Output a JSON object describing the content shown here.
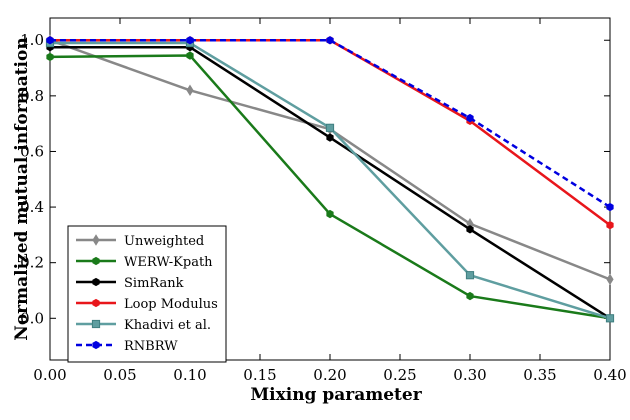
{
  "chart_data": {
    "type": "line",
    "title": "",
    "xlabel": "Mixing parameter",
    "ylabel": "Normalized mutual information",
    "xlim": [
      0.0,
      0.4
    ],
    "ylim": [
      -0.15,
      1.08
    ],
    "x": [
      0.0,
      0.1,
      0.2,
      0.3,
      0.4
    ],
    "xticks": [
      "0.00",
      "0.05",
      "0.10",
      "0.15",
      "0.20",
      "0.25",
      "0.30",
      "0.35",
      "0.40"
    ],
    "yticks": [
      "0.0",
      "0.2",
      "0.4",
      "0.6",
      "0.8",
      "1.0"
    ],
    "grid": false,
    "legend_position": "bottom-left",
    "series": [
      {
        "name": "Unweighted",
        "values": [
          1.0,
          0.82,
          0.68,
          0.34,
          0.14
        ],
        "color": "#888888",
        "marker": "diamond",
        "dash": "solid"
      },
      {
        "name": "WERW-Kpath",
        "values": [
          0.94,
          0.945,
          0.375,
          0.08,
          0.0
        ],
        "color": "#1a7a1a",
        "marker": "hexagon",
        "dash": "solid"
      },
      {
        "name": "SimRank",
        "values": [
          0.975,
          0.975,
          0.65,
          0.32,
          0.0
        ],
        "color": "#000000",
        "marker": "hexagon",
        "dash": "solid"
      },
      {
        "name": "Loop Modulus",
        "values": [
          1.0,
          1.0,
          1.0,
          0.71,
          0.335
        ],
        "color": "#e8161b",
        "marker": "hexagon",
        "dash": "solid"
      },
      {
        "name": "Khadivi et al.",
        "values": [
          0.99,
          0.99,
          0.685,
          0.155,
          0.0
        ],
        "color": "#5f9ea0",
        "marker": "square",
        "dash": "solid"
      },
      {
        "name": "RNBRW",
        "values": [
          1.0,
          1.0,
          1.0,
          0.72,
          0.4
        ],
        "color": "#0000e0",
        "marker": "hexagon",
        "dash": "dashed"
      }
    ]
  }
}
